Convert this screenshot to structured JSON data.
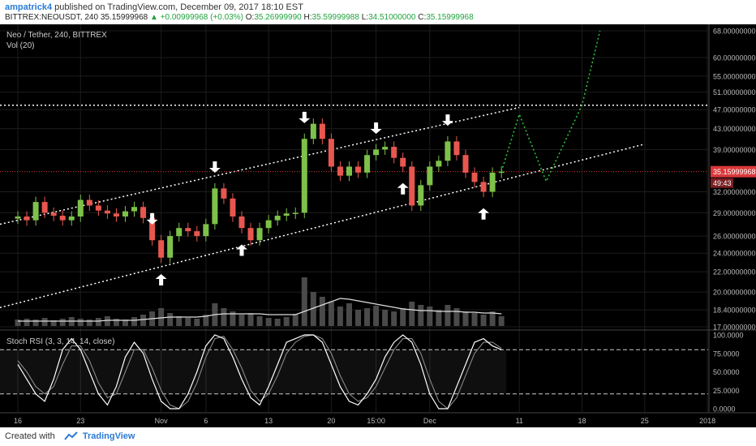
{
  "header": {
    "user": "ampatrick4",
    "published": "published on TradingView.com, December 09, 2017 18:10 EST",
    "symbol": "BITTREX:NEOUSDT, 240",
    "price": "35.15999968",
    "change": "+0.00999968 (+0.03%)",
    "o_label": "O:",
    "o": "35.26999990",
    "h_label": "H:",
    "h": "35.59999988",
    "l_label": "L:",
    "l": "34.51000000",
    "c_label": "C:",
    "c": "35.15999968"
  },
  "legend": {
    "title": "Neo / Tether, 240, BITTREX",
    "vol": "Vol (20)",
    "stoch": "Stoch RSI (3, 3, 14, 14, close)"
  },
  "footer": {
    "created_with": "Created with",
    "brand": "TradingView"
  },
  "colors": {
    "background": "#000000",
    "up": "#7ec14a",
    "down": "#e8574f",
    "price_line": "#d9383a",
    "forecast": "#2bbf3a",
    "trend": "#ffffff"
  },
  "chart_data": [
    {
      "type": "line",
      "name": "price",
      "x_ticks": [
        "16",
        "23",
        "Nov",
        "6",
        "13",
        "20",
        "15:00",
        "Dec",
        "11",
        "18",
        "25",
        "2018"
      ],
      "y_ticks": [
        "68.00000000",
        "60.00000000",
        "55.00000000",
        "51.00000000",
        "47.00000000",
        "43.00000000",
        "39.00000000",
        "35.15999968",
        "32.00000000",
        "29.00000000",
        "26.00000000",
        "24.00000000",
        "22.00000000",
        "20.00000000",
        "18.40000000",
        "17.00000000"
      ],
      "ylim": [
        17,
        68
      ],
      "log_scale": true,
      "last_price": 35.15999968,
      "countdown": "49:43",
      "x": [
        "Oct 16",
        "Oct 17",
        "Oct 18",
        "Oct 19",
        "Oct 20",
        "Oct 21",
        "Oct 22",
        "Oct 23",
        "Oct 24",
        "Oct 25",
        "Oct 26",
        "Oct 27",
        "Oct 28",
        "Oct 29",
        "Oct 30",
        "Oct 31",
        "Nov 1",
        "Nov 2",
        "Nov 3",
        "Nov 4",
        "Nov 5",
        "Nov 6",
        "Nov 7",
        "Nov 8",
        "Nov 9",
        "Nov 10",
        "Nov 11",
        "Nov 12",
        "Nov 13",
        "Nov 14",
        "Nov 15",
        "Nov 16",
        "Nov 17",
        "Nov 18",
        "Nov 19",
        "Nov 20",
        "Nov 21",
        "Nov 22",
        "Nov 23",
        "Nov 24",
        "Nov 25",
        "Nov 26",
        "Nov 27",
        "Nov 28",
        "Nov 29",
        "Nov 30",
        "Dec 1",
        "Dec 2",
        "Dec 3",
        "Dec 4",
        "Dec 5",
        "Dec 6",
        "Dec 7",
        "Dec 8",
        "Dec 9"
      ],
      "close": [
        28.5,
        28.0,
        30.5,
        29.0,
        28.6,
        28.0,
        28.5,
        30.8,
        30.0,
        29.3,
        28.9,
        28.5,
        29.2,
        29.8,
        28.3,
        25.5,
        23.5,
        26.0,
        27.0,
        26.6,
        26.0,
        27.5,
        32.5,
        31.0,
        28.5,
        27.0,
        25.5,
        27.0,
        28.0,
        28.6,
        28.9,
        29.0,
        41.0,
        44.0,
        41.0,
        36.0,
        34.5,
        36.0,
        35.0,
        38.0,
        39.0,
        39.5,
        37.5,
        36.0,
        30.0,
        33.0,
        36.0,
        37.0,
        40.5,
        38.0,
        35.0,
        33.5,
        32.0,
        35.0,
        35.16
      ],
      "trend_lines": [
        {
          "name": "upper-channel",
          "from": {
            "x": "Oct 16",
            "y": 28.0
          },
          "to": {
            "x": "Dec 11",
            "y": 47.5
          }
        },
        {
          "name": "lower-channel",
          "from": {
            "x": "Oct 16",
            "y": 19.0
          },
          "to": {
            "x": "Dec 25",
            "y": 40.0
          }
        },
        {
          "name": "resistance",
          "y": 48.0
        }
      ],
      "forecast": [
        {
          "x": "Dec 9",
          "y": 35.2
        },
        {
          "x": "Dec 11",
          "y": 46.0
        },
        {
          "x": "Dec 14",
          "y": 33.6
        },
        {
          "x": "Dec 18",
          "y": 48.0
        },
        {
          "x": "Dec 20",
          "y": 68.0
        }
      ],
      "markers_down": [
        "Oct 31",
        "Nov 7",
        "Nov 17",
        "Nov 25",
        "Dec 3"
      ],
      "markers_up": [
        "Nov 1",
        "Nov 10",
        "Nov 28",
        "Dec 7"
      ]
    },
    {
      "type": "bar",
      "name": "volume",
      "values": [
        8,
        9,
        8,
        10,
        7,
        9,
        11,
        9,
        8,
        10,
        12,
        9,
        8,
        11,
        14,
        18,
        22,
        16,
        12,
        10,
        9,
        14,
        28,
        22,
        18,
        14,
        16,
        12,
        10,
        9,
        11,
        15,
        60,
        42,
        36,
        30,
        24,
        28,
        20,
        22,
        25,
        20,
        18,
        22,
        30,
        26,
        24,
        20,
        26,
        22,
        18,
        16,
        14,
        18,
        12
      ],
      "ma": [
        6,
        6,
        6,
        6,
        6,
        6,
        6,
        6,
        6,
        6,
        7,
        7,
        7,
        7,
        8,
        9,
        10,
        11,
        11,
        11,
        11,
        12,
        14,
        15,
        15,
        15,
        15,
        15,
        14,
        14,
        14,
        14,
        18,
        22,
        26,
        30,
        34,
        33,
        31,
        29,
        27,
        25,
        23,
        21,
        20,
        19,
        19,
        18,
        18,
        18,
        17,
        17,
        16,
        16,
        15
      ]
    },
    {
      "type": "line",
      "name": "stoch-rsi",
      "y_ticks": [
        "100.0000",
        "75.0000",
        "50.0000",
        "25.0000",
        "0.0000"
      ],
      "ylim": [
        0,
        100
      ],
      "bands": [
        80,
        20
      ],
      "k": [
        60,
        40,
        20,
        10,
        40,
        80,
        95,
        80,
        50,
        20,
        5,
        30,
        70,
        90,
        75,
        40,
        10,
        0,
        0,
        20,
        50,
        85,
        100,
        95,
        70,
        40,
        15,
        5,
        30,
        60,
        90,
        95,
        100,
        100,
        90,
        60,
        30,
        10,
        5,
        20,
        40,
        70,
        90,
        100,
        90,
        60,
        20,
        0,
        0,
        30,
        60,
        90,
        95,
        85,
        80
      ],
      "d": [
        65,
        50,
        30,
        20,
        30,
        60,
        85,
        85,
        65,
        35,
        15,
        20,
        50,
        80,
        80,
        55,
        25,
        5,
        0,
        10,
        35,
        70,
        95,
        98,
        80,
        55,
        25,
        10,
        20,
        45,
        75,
        90,
        98,
        100,
        95,
        75,
        45,
        20,
        10,
        15,
        30,
        55,
        80,
        95,
        95,
        75,
        40,
        10,
        0,
        15,
        45,
        75,
        90,
        90,
        82
      ]
    }
  ]
}
